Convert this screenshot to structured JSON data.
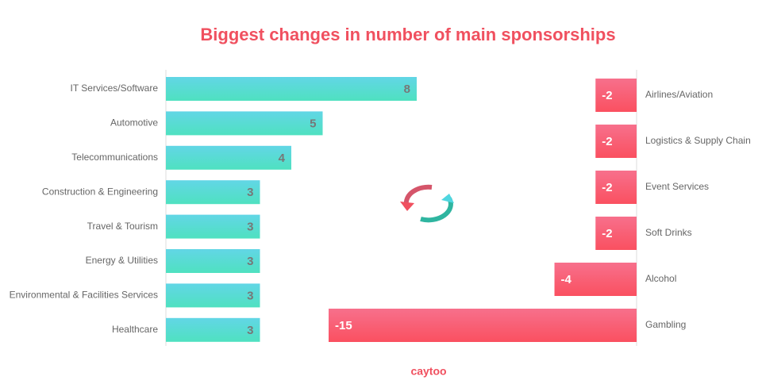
{
  "title": "Biggest changes in number of main sponsorships",
  "logo": "caytoo",
  "chart_data": [
    {
      "type": "hbar",
      "categories": [
        "IT Services/Software",
        "Automotive",
        "Telecommunications",
        "Construction & Engineering",
        "Travel & Tourism",
        "Energy & Utilities",
        "Environmental & Facilities Services",
        "Healthcare"
      ],
      "values": [
        8,
        5,
        4,
        3,
        3,
        3,
        3,
        3
      ],
      "color": [
        "#62d6e6",
        "#4fe1c0"
      ],
      "xlim": [
        0,
        8
      ]
    },
    {
      "type": "hbar",
      "categories": [
        "Airlines/Aviation",
        "Logistics & Supply Chain",
        "Event Services",
        "Soft Drinks",
        "Alcohol",
        "Gambling"
      ],
      "values": [
        -2,
        -2,
        -2,
        -2,
        -4,
        -15
      ],
      "color": [
        "#f7708c",
        "#fa5060"
      ],
      "xlim": [
        -15,
        0
      ]
    }
  ]
}
